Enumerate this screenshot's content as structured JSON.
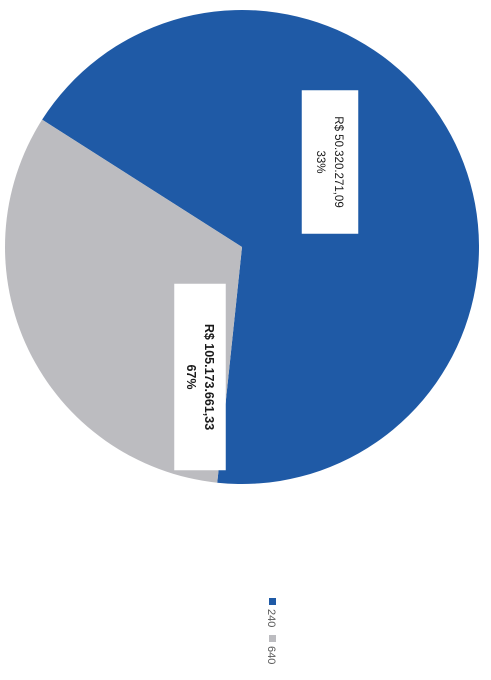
{
  "chart_data": {
    "type": "pie",
    "series": [
      {
        "name": "240",
        "value": 105173661.33,
        "label": "R$ 105.173.661,33",
        "percent_label": "67%",
        "color": "#1f5aa6"
      },
      {
        "name": "640",
        "value": 50320271.09,
        "label": "R$ 50.320.271,09",
        "percent_label": "33%",
        "color": "#bcbcc0"
      }
    ],
    "legend_position": "bottom",
    "orientation": "rotated-90-clockwise"
  }
}
